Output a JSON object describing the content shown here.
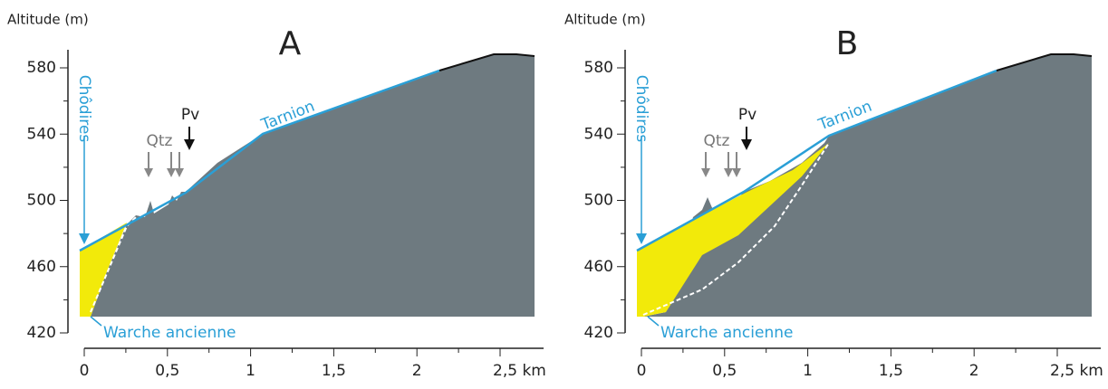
{
  "panels": [
    {
      "label": "A",
      "y_axis_title": "Altitude (m)",
      "yticks": [
        "420",
        "460",
        "500",
        "540",
        "580"
      ],
      "xticks": [
        "0",
        "0,5",
        "1",
        "1,5",
        "2",
        "2,5 km"
      ],
      "river_left": "Chôdires",
      "river_bottom": "Warche ancienne",
      "stream": "Tarnion",
      "qtz": "Qtz",
      "pv": "Pv"
    },
    {
      "label": "B",
      "y_axis_title": "Altitude (m)",
      "yticks": [
        "420",
        "460",
        "500",
        "540",
        "580"
      ],
      "xticks": [
        "0",
        "0,5",
        "1",
        "1,5",
        "2",
        "2,5 km"
      ],
      "river_left": "Chôdires",
      "river_bottom": "Warche ancienne",
      "stream": "Tarnion",
      "qtz": "Qtz",
      "pv": "Pv"
    }
  ]
}
